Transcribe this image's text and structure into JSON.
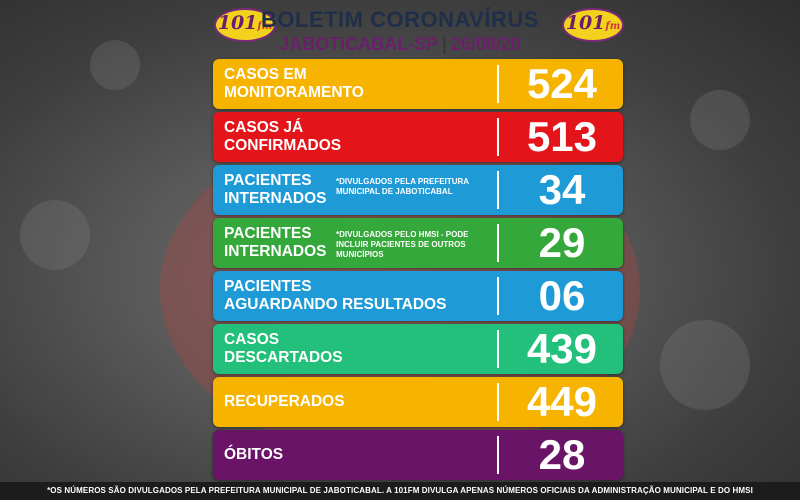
{
  "header": {
    "title": "BOLETIM CORONAVÍRUS",
    "city": "JABOTICABAL-SP",
    "separator": "|",
    "date": "26/08/20",
    "logo_text": "101",
    "logo_suffix": "fm"
  },
  "rows": [
    {
      "label_line1": "CASOS EM",
      "label_line2": "MONITORAMENTO",
      "value": "524",
      "color": "#f6b300",
      "note": ""
    },
    {
      "label_line1": "CASOS JÁ",
      "label_line2": "CONFIRMADOS",
      "value": "513",
      "color": "#e4141b",
      "note": ""
    },
    {
      "label_line1": "PACIENTES",
      "label_line2": "INTERNADOS",
      "value": "34",
      "color": "#1e9ad6",
      "note": "*DIVULGADOS PELA PREFEITURA MUNICIPAL DE JABOTICABAL"
    },
    {
      "label_line1": "PACIENTES",
      "label_line2": "INTERNADOS",
      "value": "29",
      "color": "#34a83a",
      "note": "*DIVULGADOS PELO HMSI - PODE INCLUIR PACIENTES DE OUTROS MUNICÍPIOS"
    },
    {
      "label_line1": "PACIENTES",
      "label_line2": "AGUARDANDO RESULTADOS",
      "value": "06",
      "color": "#1e9ad6",
      "note": ""
    },
    {
      "label_line1": "CASOS",
      "label_line2": "DESCARTADOS",
      "value": "439",
      "color": "#22c07a",
      "note": ""
    },
    {
      "label_line1": "RECUPERADOS",
      "label_line2": "",
      "value": "449",
      "color": "#f6b300",
      "note": ""
    },
    {
      "label_line1": "ÓBITOS",
      "label_line2": "",
      "value": "28",
      "color": "#6a1468",
      "note": ""
    }
  ],
  "footer": {
    "text": "*OS NÚMEROS SÃO DIVULGADOS PELA PREFEITURA MUNICIPAL DE JABOTICABAL. A 101FM DIVULGA APENAS NÚMEROS OFICIAIS DA ADMINISTRAÇÃO MUNICIPAL E DO HMSI"
  }
}
